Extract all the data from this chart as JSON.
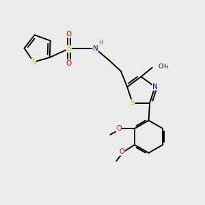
{
  "background_color": "#ebebeb",
  "atom_colors": {
    "S": "#c8b400",
    "N": "#0000cc",
    "O": "#cc0000",
    "C": "#000000",
    "H": "#2a8a7a"
  },
  "bond_color": "#000000",
  "bond_width": 1.4,
  "fig_w": 3.0,
  "fig_h": 3.0,
  "dpi": 100
}
